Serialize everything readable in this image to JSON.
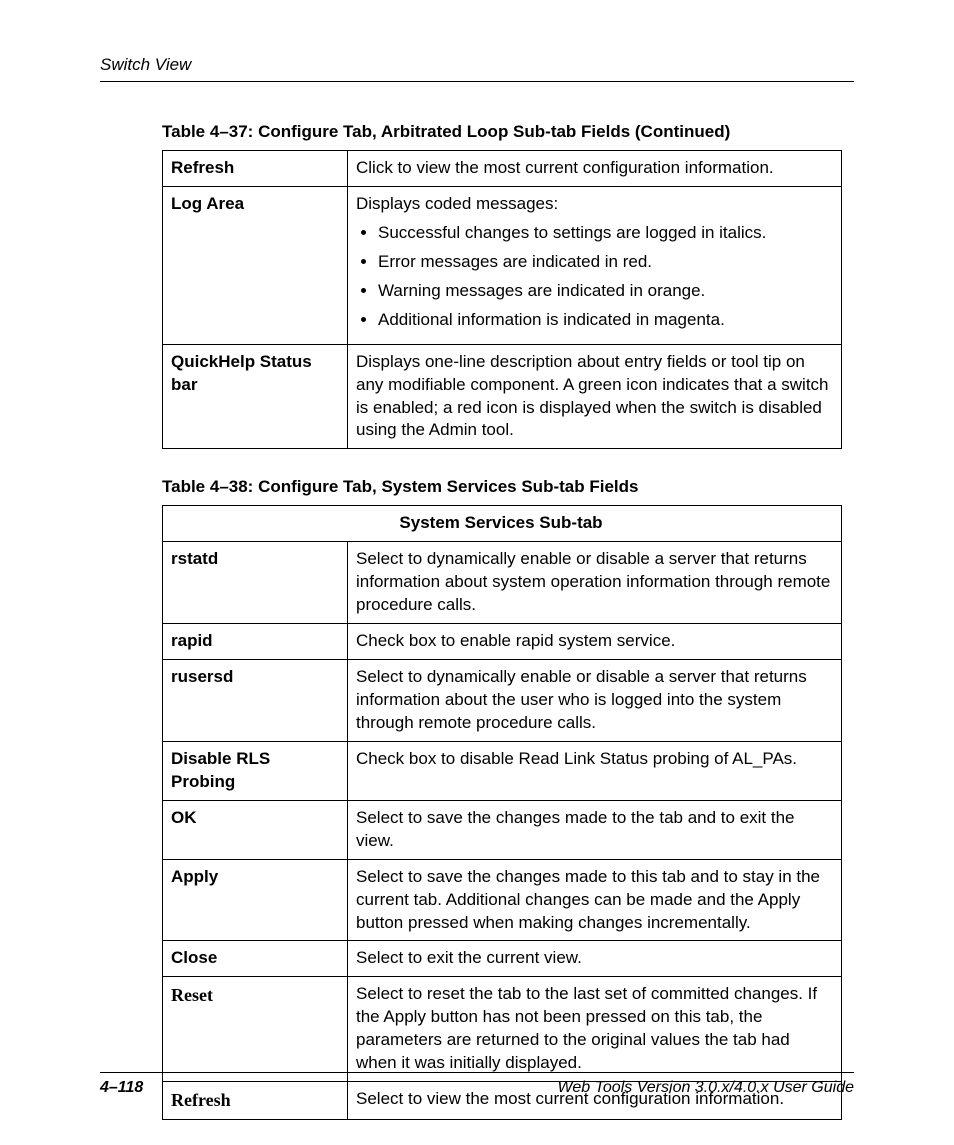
{
  "header": {
    "section": "Switch View"
  },
  "table37": {
    "caption": "Table 4–37:  Configure Tab, Arbitrated Loop Sub-tab Fields (Continued)",
    "rows": [
      {
        "field": "Refresh",
        "desc": "Click to view the most current configuration information."
      },
      {
        "field": "Log Area",
        "intro": "Displays coded messages:",
        "bullets": [
          "Successful changes to settings are logged in italics.",
          "Error messages are indicated in red.",
          "Warning messages are indicated in orange.",
          "Additional information is indicated in magenta."
        ]
      },
      {
        "field": "QuickHelp Status bar",
        "desc": "Displays one-line description about entry fields or tool tip on any modifiable component. A green icon indicates that a switch is enabled; a red icon is displayed when the switch is disabled using the Admin tool."
      }
    ]
  },
  "table38": {
    "caption": "Table 4–38:  Configure Tab, System Services Sub-tab Fields",
    "subtab_header": "System Services Sub-tab",
    "rows": [
      {
        "field": "rstatd",
        "desc": "Select to dynamically enable or disable a server that returns information about system operation information through remote procedure calls."
      },
      {
        "field": "rapid",
        "desc": "Check box to enable rapid system service."
      },
      {
        "field": "rusersd",
        "desc": "Select to dynamically enable or disable a server that returns information about the user who is logged into the system through remote procedure calls."
      },
      {
        "field": "Disable RLS Probing",
        "desc": "Check box to disable Read Link Status probing of AL_PAs."
      },
      {
        "field": "OK",
        "desc": "Select to save the changes made to the tab and to exit the view."
      },
      {
        "field": "Apply",
        "desc": "Select to save the changes made to this tab and to stay in the current tab. Additional changes can be made and the Apply button pressed when making changes incrementally."
      },
      {
        "field": "Close",
        "desc": "Select to exit the current view."
      },
      {
        "field": "Reset",
        "serif": true,
        "desc": "Select to reset the tab to the last set of committed changes. If the Apply button has not been pressed on this tab, the parameters are returned to the original values the tab had when it was initially displayed."
      },
      {
        "field": "Refresh",
        "serif": true,
        "desc": "Select to view the most current configuration information."
      }
    ]
  },
  "footer": {
    "page": "4–118",
    "guide": "Web Tools Version 3.0.x/4.0.x User Guide"
  }
}
